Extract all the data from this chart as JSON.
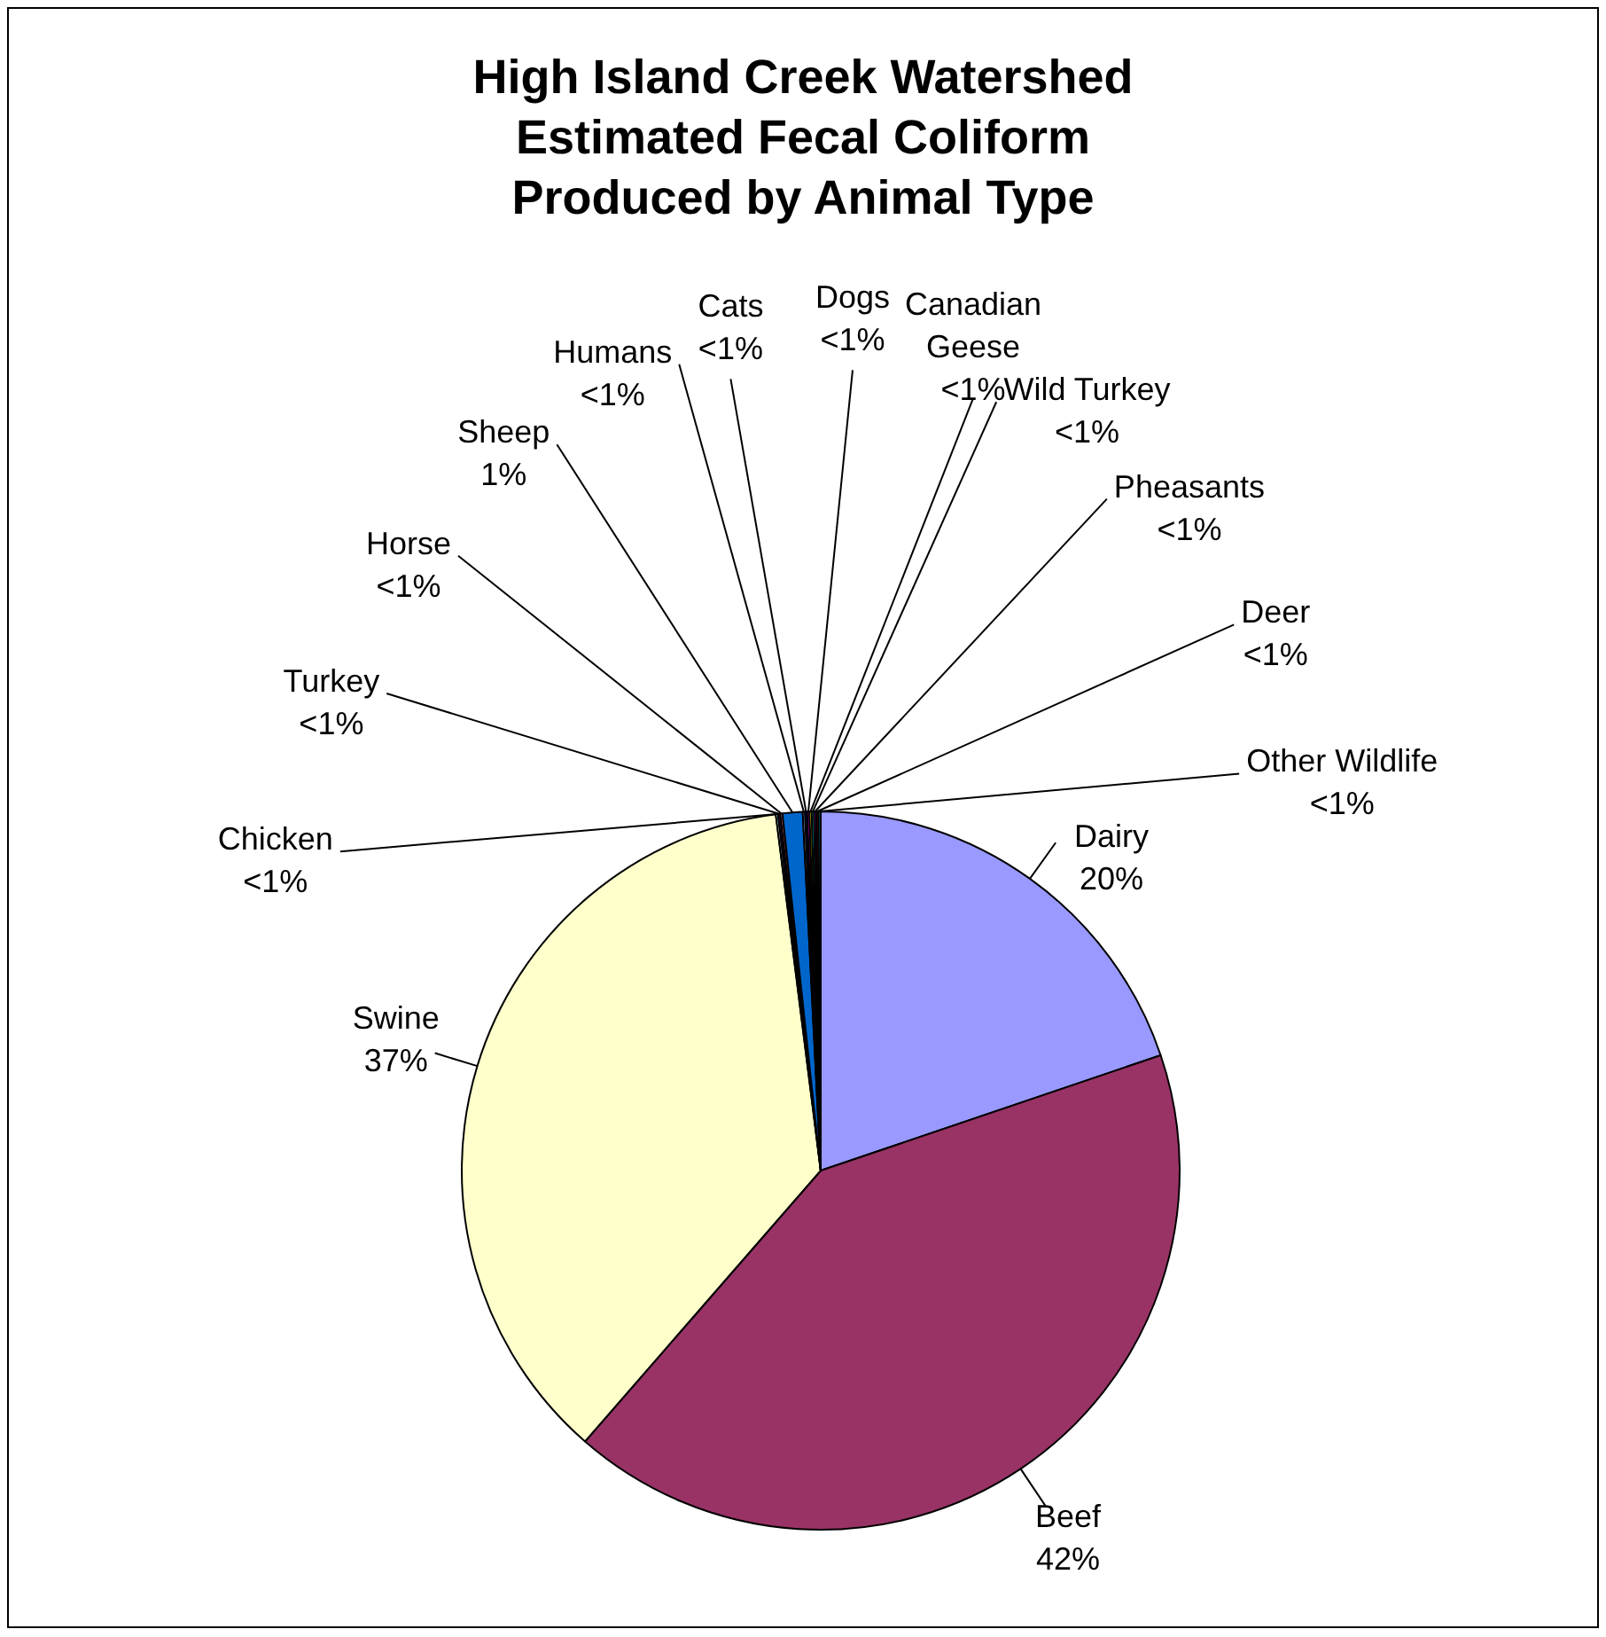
{
  "chart_data": {
    "type": "pie",
    "title": "High Island Creek Watershed\nEstimated Fecal Coliform\nProduced by Animal Type",
    "categories": [
      "Dairy",
      "Beef",
      "Swine",
      "Chicken",
      "Turkey",
      "Horse",
      "Sheep",
      "Humans",
      "Cats",
      "Dogs",
      "Canadian Geese",
      "Wild Turkey",
      "Pheasants",
      "Deer",
      "Other Wildlife"
    ],
    "values": [
      19.8,
      41.6,
      36.6,
      0.1,
      0.1,
      0.1,
      0.9,
      0.1,
      0.1,
      0.1,
      0.1,
      0.1,
      0.1,
      0.1,
      0.1
    ],
    "value_labels": [
      "20%",
      "42%",
      "37%",
      "<1%",
      "<1%",
      "<1%",
      "1%",
      "<1%",
      "<1%",
      "<1%",
      "<1%",
      "<1%",
      "<1%",
      "<1%",
      "<1%"
    ],
    "colors": [
      "#9999ff",
      "#993366",
      "#ffffcc",
      "#ccffff",
      "#660066",
      "#ff8080",
      "#0066cc",
      "#ccccff",
      "#000080",
      "#ff00ff",
      "#ffff00",
      "#00ffff",
      "#800080",
      "#800000",
      "#008080"
    ],
    "legend": false
  }
}
